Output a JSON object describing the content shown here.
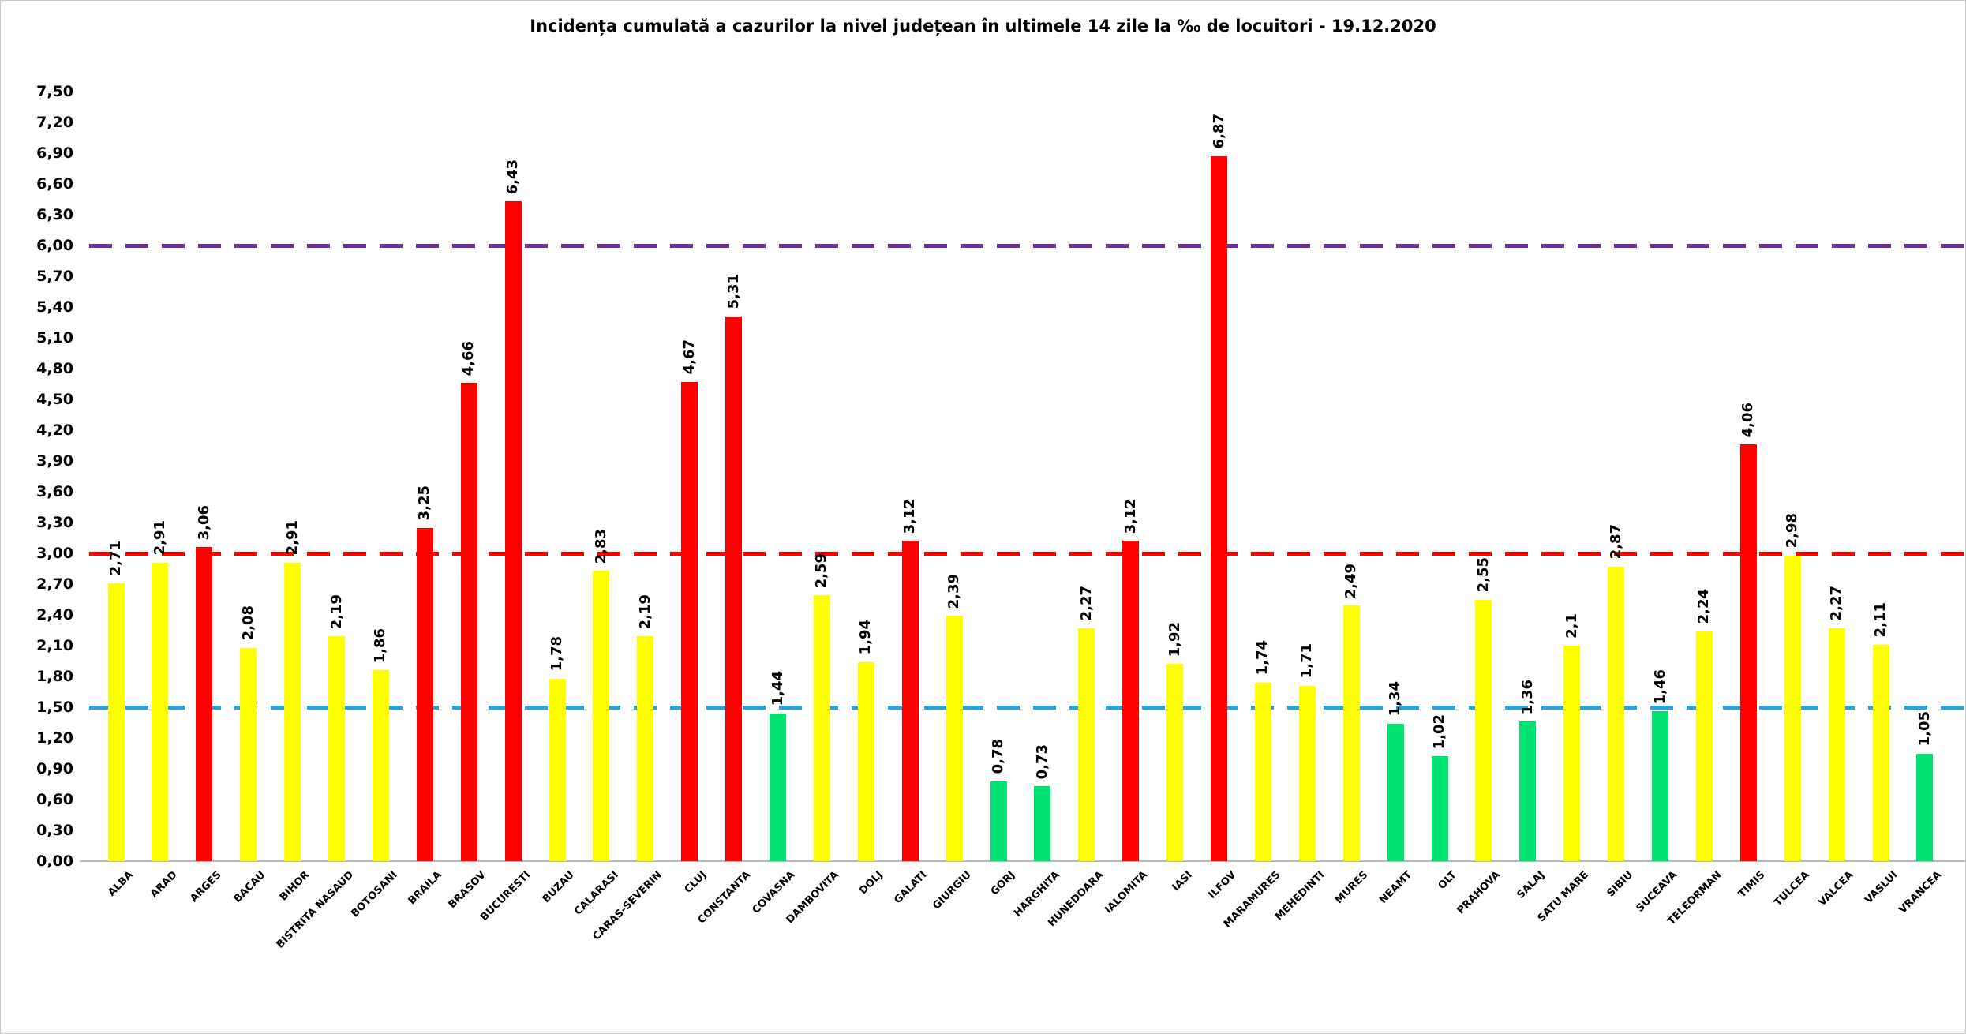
{
  "title": "Incidența cumulată a cazurilor la nivel județean în ultimele 14 zile la ‰ de locuitori - 19.12.2020",
  "chart_data": {
    "type": "bar",
    "title": "Incidența cumulată a cazurilor la nivel județean în ultimele 14 zile la ‰ de locuitori - 19.12.2020",
    "xlabel": "",
    "ylabel": "",
    "ylim": [
      0,
      7.5
    ],
    "ytick_step": 0.3,
    "grid": false,
    "legend": false,
    "decimal_separator": ",",
    "ytick_labels": [
      "0,00",
      "0,30",
      "0,60",
      "0,90",
      "1,20",
      "1,50",
      "1,80",
      "2,10",
      "2,40",
      "2,70",
      "3,00",
      "3,30",
      "3,60",
      "3,90",
      "4,20",
      "4,50",
      "4,80",
      "5,10",
      "5,40",
      "5,70",
      "6,00",
      "6,30",
      "6,60",
      "6,90",
      "7,20",
      "7,50"
    ],
    "categories": [
      "ALBA",
      "ARAD",
      "ARGES",
      "BACAU",
      "BIHOR",
      "BISTRITA NASAUD",
      "BOTOSANI",
      "BRAILA",
      "BRASOV",
      "BUCURESTI",
      "BUZAU",
      "CALARASI",
      "CARAS-SEVERIN",
      "CLUJ",
      "CONSTANTA",
      "COVASNA",
      "DAMBOVITA",
      "DOLJ",
      "GALATI",
      "GIURGIU",
      "GORJ",
      "HARGHITA",
      "HUNEDOARA",
      "IALOMITA",
      "IASI",
      "ILFOV",
      "MARAMURES",
      "MEHEDINTI",
      "MURES",
      "NEAMT",
      "OLT",
      "PRAHOVA",
      "SALAJ",
      "SATU MARE",
      "SIBIU",
      "SUCEAVA",
      "TELEORMAN",
      "TIMIS",
      "TULCEA",
      "VALCEA",
      "VASLUI",
      "VRANCEA"
    ],
    "values": [
      2.71,
      2.91,
      3.06,
      2.08,
      2.91,
      2.19,
      1.86,
      3.25,
      4.66,
      6.43,
      1.78,
      2.83,
      2.19,
      4.67,
      5.31,
      1.44,
      2.59,
      1.94,
      3.12,
      2.39,
      0.78,
      0.73,
      2.27,
      3.12,
      1.92,
      6.87,
      1.74,
      1.71,
      2.49,
      1.34,
      1.02,
      2.55,
      1.36,
      2.1,
      2.87,
      1.46,
      2.24,
      4.06,
      2.98,
      2.27,
      2.11,
      1.05
    ],
    "value_labels": [
      "2,71",
      "2,91",
      "3,06",
      "2,08",
      "2,91",
      "2,19",
      "1,86",
      "3,25",
      "4,66",
      "6,43",
      "1,78",
      "2,83",
      "2,19",
      "4,67",
      "5,31",
      "1,44",
      "2,59",
      "1,94",
      "3,12",
      "2,39",
      "0,78",
      "0,73",
      "2,27",
      "3,12",
      "1,92",
      "6,87",
      "1,74",
      "1,71",
      "2,49",
      "1,34",
      "1,02",
      "2,55",
      "1,36",
      "2,1",
      "2,87",
      "1,46",
      "2,24",
      "4,06",
      "2,98",
      "2,27",
      "2,11",
      "1,05"
    ],
    "bar_color_keys": [
      "yellow",
      "yellow",
      "red",
      "yellow",
      "yellow",
      "yellow",
      "yellow",
      "red",
      "red",
      "red",
      "yellow",
      "yellow",
      "yellow",
      "red",
      "red",
      "green",
      "yellow",
      "yellow",
      "red",
      "yellow",
      "green",
      "green",
      "yellow",
      "red",
      "yellow",
      "red",
      "yellow",
      "yellow",
      "yellow",
      "green",
      "green",
      "yellow",
      "green",
      "yellow",
      "yellow",
      "green",
      "yellow",
      "red",
      "yellow",
      "yellow",
      "yellow",
      "green"
    ],
    "colors": {
      "red": "#ff0000",
      "yellow": "#ffff00",
      "green": "#00e272"
    },
    "reference_lines": [
      {
        "label": "1,50",
        "value": 1.5,
        "color": "#29a3dc",
        "style": "dashed"
      },
      {
        "label": "3,00",
        "value": 3.0,
        "color": "#ff0000",
        "style": "dashed"
      },
      {
        "label": "6,00",
        "value": 6.0,
        "color": "#7030a0",
        "style": "dashed"
      }
    ]
  }
}
